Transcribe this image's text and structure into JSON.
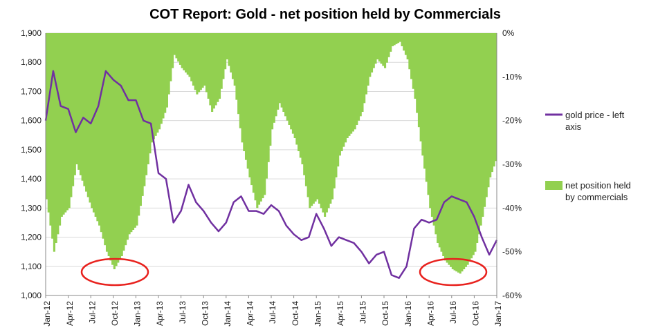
{
  "chart_data": {
    "type": "bar+line",
    "title": "COT Report: Gold - net position held by Commercials",
    "x_ticks": [
      "Jan-12",
      "Apr-12",
      "Jul-12",
      "Oct-12",
      "Jan-13",
      "Apr-13",
      "Jul-13",
      "Oct-13",
      "Jan-14",
      "Apr-14",
      "Jul-14",
      "Oct-14",
      "Jan-15",
      "Apr-15",
      "Jul-15",
      "Oct-15",
      "Jan-16",
      "Apr-16",
      "Jul-16",
      "Oct-16",
      "Jan-17"
    ],
    "y_left": {
      "min": 1000,
      "max": 1900,
      "step": 100,
      "ticks": [
        "1,000",
        "1,100",
        "1,200",
        "1,300",
        "1,400",
        "1,500",
        "1,600",
        "1,700",
        "1,800",
        "1,900"
      ]
    },
    "y_right": {
      "min": -60,
      "max": 0,
      "step": 10,
      "ticks": [
        "-60%",
        "-50%",
        "-40%",
        "-30%",
        "-20%",
        "-10%",
        "0%"
      ]
    },
    "grid": true,
    "legend": {
      "placement": "right"
    },
    "series": [
      {
        "name": "gold price - left axis",
        "axis": "left",
        "type": "line",
        "color": "#7030a0",
        "x": [
          "2012-01",
          "2012-02",
          "2012-03",
          "2012-04",
          "2012-05",
          "2012-06",
          "2012-07",
          "2012-08",
          "2012-09",
          "2012-10",
          "2012-11",
          "2012-12",
          "2013-01",
          "2013-02",
          "2013-03",
          "2013-04",
          "2013-05",
          "2013-06",
          "2013-07",
          "2013-08",
          "2013-09",
          "2013-10",
          "2013-11",
          "2013-12",
          "2014-01",
          "2014-02",
          "2014-03",
          "2014-04",
          "2014-05",
          "2014-06",
          "2014-07",
          "2014-08",
          "2014-09",
          "2014-10",
          "2014-11",
          "2014-12",
          "2015-01",
          "2015-02",
          "2015-03",
          "2015-04",
          "2015-05",
          "2015-06",
          "2015-07",
          "2015-08",
          "2015-09",
          "2015-10",
          "2015-11",
          "2015-12",
          "2016-01",
          "2016-02",
          "2016-03",
          "2016-04",
          "2016-05",
          "2016-06",
          "2016-07",
          "2016-08",
          "2016-09",
          "2016-10",
          "2016-11",
          "2016-12",
          "2017-01"
        ],
        "values": [
          1600,
          1770,
          1650,
          1640,
          1560,
          1610,
          1590,
          1650,
          1770,
          1740,
          1720,
          1670,
          1670,
          1600,
          1590,
          1420,
          1400,
          1250,
          1290,
          1380,
          1320,
          1290,
          1250,
          1220,
          1250,
          1320,
          1340,
          1290,
          1290,
          1280,
          1310,
          1290,
          1240,
          1210,
          1190,
          1200,
          1280,
          1230,
          1170,
          1200,
          1190,
          1180,
          1150,
          1110,
          1140,
          1150,
          1070,
          1060,
          1100,
          1230,
          1260,
          1250,
          1260,
          1320,
          1340,
          1330,
          1320,
          1270,
          1200,
          1140,
          1190
        ]
      },
      {
        "name": "net position held by commercials",
        "axis": "right",
        "type": "bar",
        "color": "#92d050",
        "x": [
          "2012-01",
          "2012-02",
          "2012-03",
          "2012-04",
          "2012-05",
          "2012-06",
          "2012-07",
          "2012-08",
          "2012-09",
          "2012-10",
          "2012-11",
          "2012-12",
          "2013-01",
          "2013-02",
          "2013-03",
          "2013-04",
          "2013-05",
          "2013-06",
          "2013-07",
          "2013-08",
          "2013-09",
          "2013-10",
          "2013-11",
          "2013-12",
          "2014-01",
          "2014-02",
          "2014-03",
          "2014-04",
          "2014-05",
          "2014-06",
          "2014-07",
          "2014-08",
          "2014-09",
          "2014-10",
          "2014-11",
          "2014-12",
          "2015-01",
          "2015-02",
          "2015-03",
          "2015-04",
          "2015-05",
          "2015-06",
          "2015-07",
          "2015-08",
          "2015-09",
          "2015-10",
          "2015-11",
          "2015-12",
          "2016-01",
          "2016-02",
          "2016-03",
          "2016-04",
          "2016-05",
          "2016-06",
          "2016-07",
          "2016-08",
          "2016-09",
          "2016-10",
          "2016-11",
          "2016-12",
          "2017-01"
        ],
        "values": [
          -38,
          -50,
          -42,
          -40,
          -30,
          -35,
          -40,
          -44,
          -50,
          -54,
          -51,
          -46,
          -44,
          -35,
          -25,
          -22,
          -17,
          -5,
          -8,
          -10,
          -14,
          -12,
          -18,
          -15,
          -6,
          -12,
          -25,
          -33,
          -40,
          -37,
          -22,
          -16,
          -20,
          -24,
          -30,
          -40,
          -38,
          -42,
          -38,
          -28,
          -24,
          -22,
          -18,
          -10,
          -6,
          -8,
          -3,
          -2,
          -6,
          -15,
          -28,
          -40,
          -48,
          -52,
          -54,
          -55,
          -53,
          -50,
          -42,
          -33,
          -28
        ]
      }
    ]
  }
}
